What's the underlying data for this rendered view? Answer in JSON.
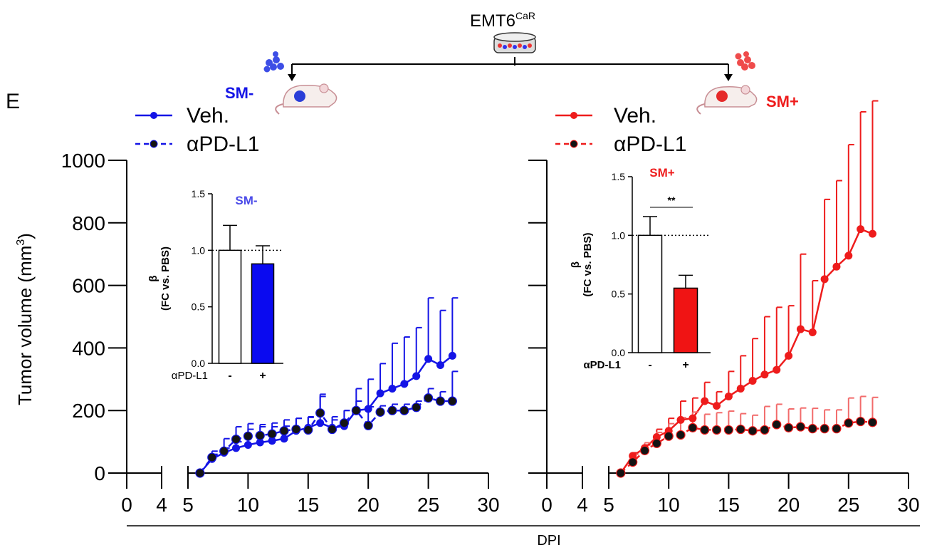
{
  "panel_letter": "E",
  "header": {
    "cell_line": "EMT6",
    "cell_line_superscript": "CaR"
  },
  "colors": {
    "sm_minus": "#1414e6",
    "sm_plus": "#ee1c1c",
    "sm_plus_light": "#f26b6b",
    "apdl1_dot": "#141414",
    "axis": "#000000"
  },
  "panels": {
    "left": {
      "group_label": "SM-",
      "legend": {
        "veh": "Veh.",
        "apdl1": "αPD-L1"
      }
    },
    "right": {
      "group_label": "SM+",
      "legend": {
        "veh": "Veh.",
        "apdl1": "αPD-L1"
      }
    }
  },
  "x_title": "DPI",
  "chart_data": [
    {
      "type": "line",
      "panel": "SM-",
      "ylabel_main": "Tumor volume (mm",
      "ylabel_sup": "3",
      "ylabel_end": ")",
      "ylim": [
        0,
        1000
      ],
      "yticks": [
        "0",
        "200",
        "400",
        "600",
        "800",
        "1000"
      ],
      "x_break_ticks": [
        "0",
        "4"
      ],
      "xticks": [
        "5",
        "10",
        "15",
        "20",
        "25",
        "30"
      ],
      "xlim": [
        5,
        30
      ],
      "x": [
        6,
        7,
        8,
        9,
        10,
        11,
        12,
        13,
        14,
        15,
        16,
        17,
        18,
        19,
        20,
        21,
        22,
        23,
        24,
        25,
        26,
        27
      ],
      "series": [
        {
          "name": "Veh.",
          "style": "solid",
          "values": [
            0,
            45,
            65,
            80,
            90,
            98,
            103,
            110,
            135,
            145,
            160,
            145,
            150,
            200,
            205,
            255,
            270,
            285,
            310,
            365,
            345,
            375
          ],
          "err": [
            0,
            15,
            15,
            20,
            50,
            50,
            45,
            40,
            40,
            35,
            85,
            35,
            50,
            70,
            95,
            95,
            145,
            150,
            155,
            195,
            175,
            185
          ]
        },
        {
          "name": "αPD-L1",
          "style": "dashed",
          "values": [
            0,
            50,
            70,
            108,
            118,
            120,
            125,
            135,
            140,
            138,
            192,
            140,
            160,
            200,
            152,
            195,
            200,
            200,
            210,
            240,
            230,
            230
          ],
          "err": [
            0,
            20,
            40,
            40,
            40,
            35,
            35,
            35,
            35,
            40,
            60,
            30,
            40,
            30,
            60,
            20,
            20,
            20,
            20,
            30,
            30,
            95
          ]
        }
      ]
    },
    {
      "type": "line",
      "panel": "SM+",
      "ylim": [
        0,
        1000
      ],
      "x_break_ticks": [
        "0",
        "4"
      ],
      "xticks": [
        "5",
        "10",
        "15",
        "20",
        "25",
        "30"
      ],
      "xlim": [
        5,
        30
      ],
      "x": [
        6,
        7,
        8,
        9,
        10,
        11,
        12,
        13,
        14,
        15,
        16,
        17,
        18,
        19,
        20,
        21,
        22,
        23,
        24,
        25,
        26,
        27
      ],
      "series": [
        {
          "name": "Veh.",
          "style": "solid",
          "values": [
            0,
            55,
            80,
            115,
            135,
            170,
            175,
            230,
            215,
            245,
            270,
            295,
            315,
            330,
            375,
            460,
            450,
            620,
            660,
            695,
            780,
            765
          ],
          "err": [
            0,
            10,
            10,
            25,
            40,
            60,
            65,
            60,
            45,
            80,
            105,
            135,
            185,
            200,
            160,
            240,
            165,
            255,
            275,
            355,
            375,
            425
          ]
        },
        {
          "name": "αPD-L1",
          "style": "dashed",
          "values": [
            0,
            35,
            72,
            95,
            118,
            122,
            145,
            138,
            138,
            138,
            140,
            135,
            138,
            155,
            145,
            148,
            142,
            142,
            142,
            160,
            165,
            162
          ],
          "err": [
            0,
            25,
            25,
            35,
            40,
            55,
            50,
            50,
            55,
            60,
            50,
            50,
            75,
            65,
            60,
            60,
            65,
            60,
            60,
            80,
            80,
            80
          ]
        }
      ]
    },
    {
      "type": "bar",
      "panel": "SM-",
      "title": "SM-",
      "ylabel": "β",
      "ylabel_sub": "(FC vs. PBS)",
      "ylim": [
        0,
        1.5
      ],
      "yticks": [
        "0.0",
        "0.5",
        "1.0",
        "1.5"
      ],
      "xlabel": "αPD-L1",
      "categories": [
        "-",
        "+"
      ],
      "values": [
        1.0,
        0.88
      ],
      "err": [
        0.22,
        0.16
      ],
      "fills": [
        "#ffffff",
        "#0a0af0"
      ],
      "significance": ""
    },
    {
      "type": "bar",
      "panel": "SM+",
      "title": "SM+",
      "ylabel": "β",
      "ylabel_sub": "(FC vs. PBS)",
      "ylim": [
        0,
        1.5
      ],
      "yticks": [
        "0.0",
        "0.5",
        "1.0",
        "1.5"
      ],
      "xlabel": "αPD-L1",
      "categories": [
        "-",
        "+"
      ],
      "values": [
        1.0,
        0.55
      ],
      "err": [
        0.16,
        0.11
      ],
      "fills": [
        "#ffffff",
        "#f01414"
      ],
      "significance": "**"
    }
  ]
}
